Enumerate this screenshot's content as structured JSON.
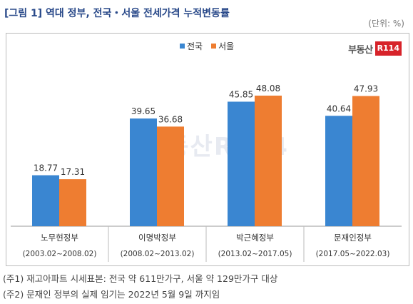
{
  "header": {
    "title": "[그림 1] 역대 정부, 전국・서울 전세가격 누적변동률",
    "unit": "(단위: %)"
  },
  "logo": {
    "text": "부동산",
    "badge": "R114"
  },
  "colors": {
    "nation": "#3a86d1",
    "seoul": "#ee7d31"
  },
  "chart_data": {
    "type": "bar",
    "categories": [
      "노무현정부",
      "이명박정부",
      "박근혜정부",
      "문재인정부"
    ],
    "periods": [
      "(2003.02~2008.02)",
      "(2008.02~2013.02)",
      "(2013.02~2017.05)",
      "(2017.05~2022.03)"
    ],
    "series": [
      {
        "name": "전국",
        "values": [
          18.77,
          39.65,
          45.85,
          40.64
        ]
      },
      {
        "name": "서울",
        "values": [
          17.31,
          36.68,
          48.08,
          47.93
        ]
      }
    ],
    "legend_position": "top",
    "grid": false,
    "ylim": [
      0,
      55
    ]
  },
  "notes": [
    "(주1) 재고아파트 시세표본: 전국 약 611만가구, 서울 약 129만가구 대상",
    "(주2) 문재인 정부의 실제 임기는 2022년 5월 9일 까지임"
  ]
}
